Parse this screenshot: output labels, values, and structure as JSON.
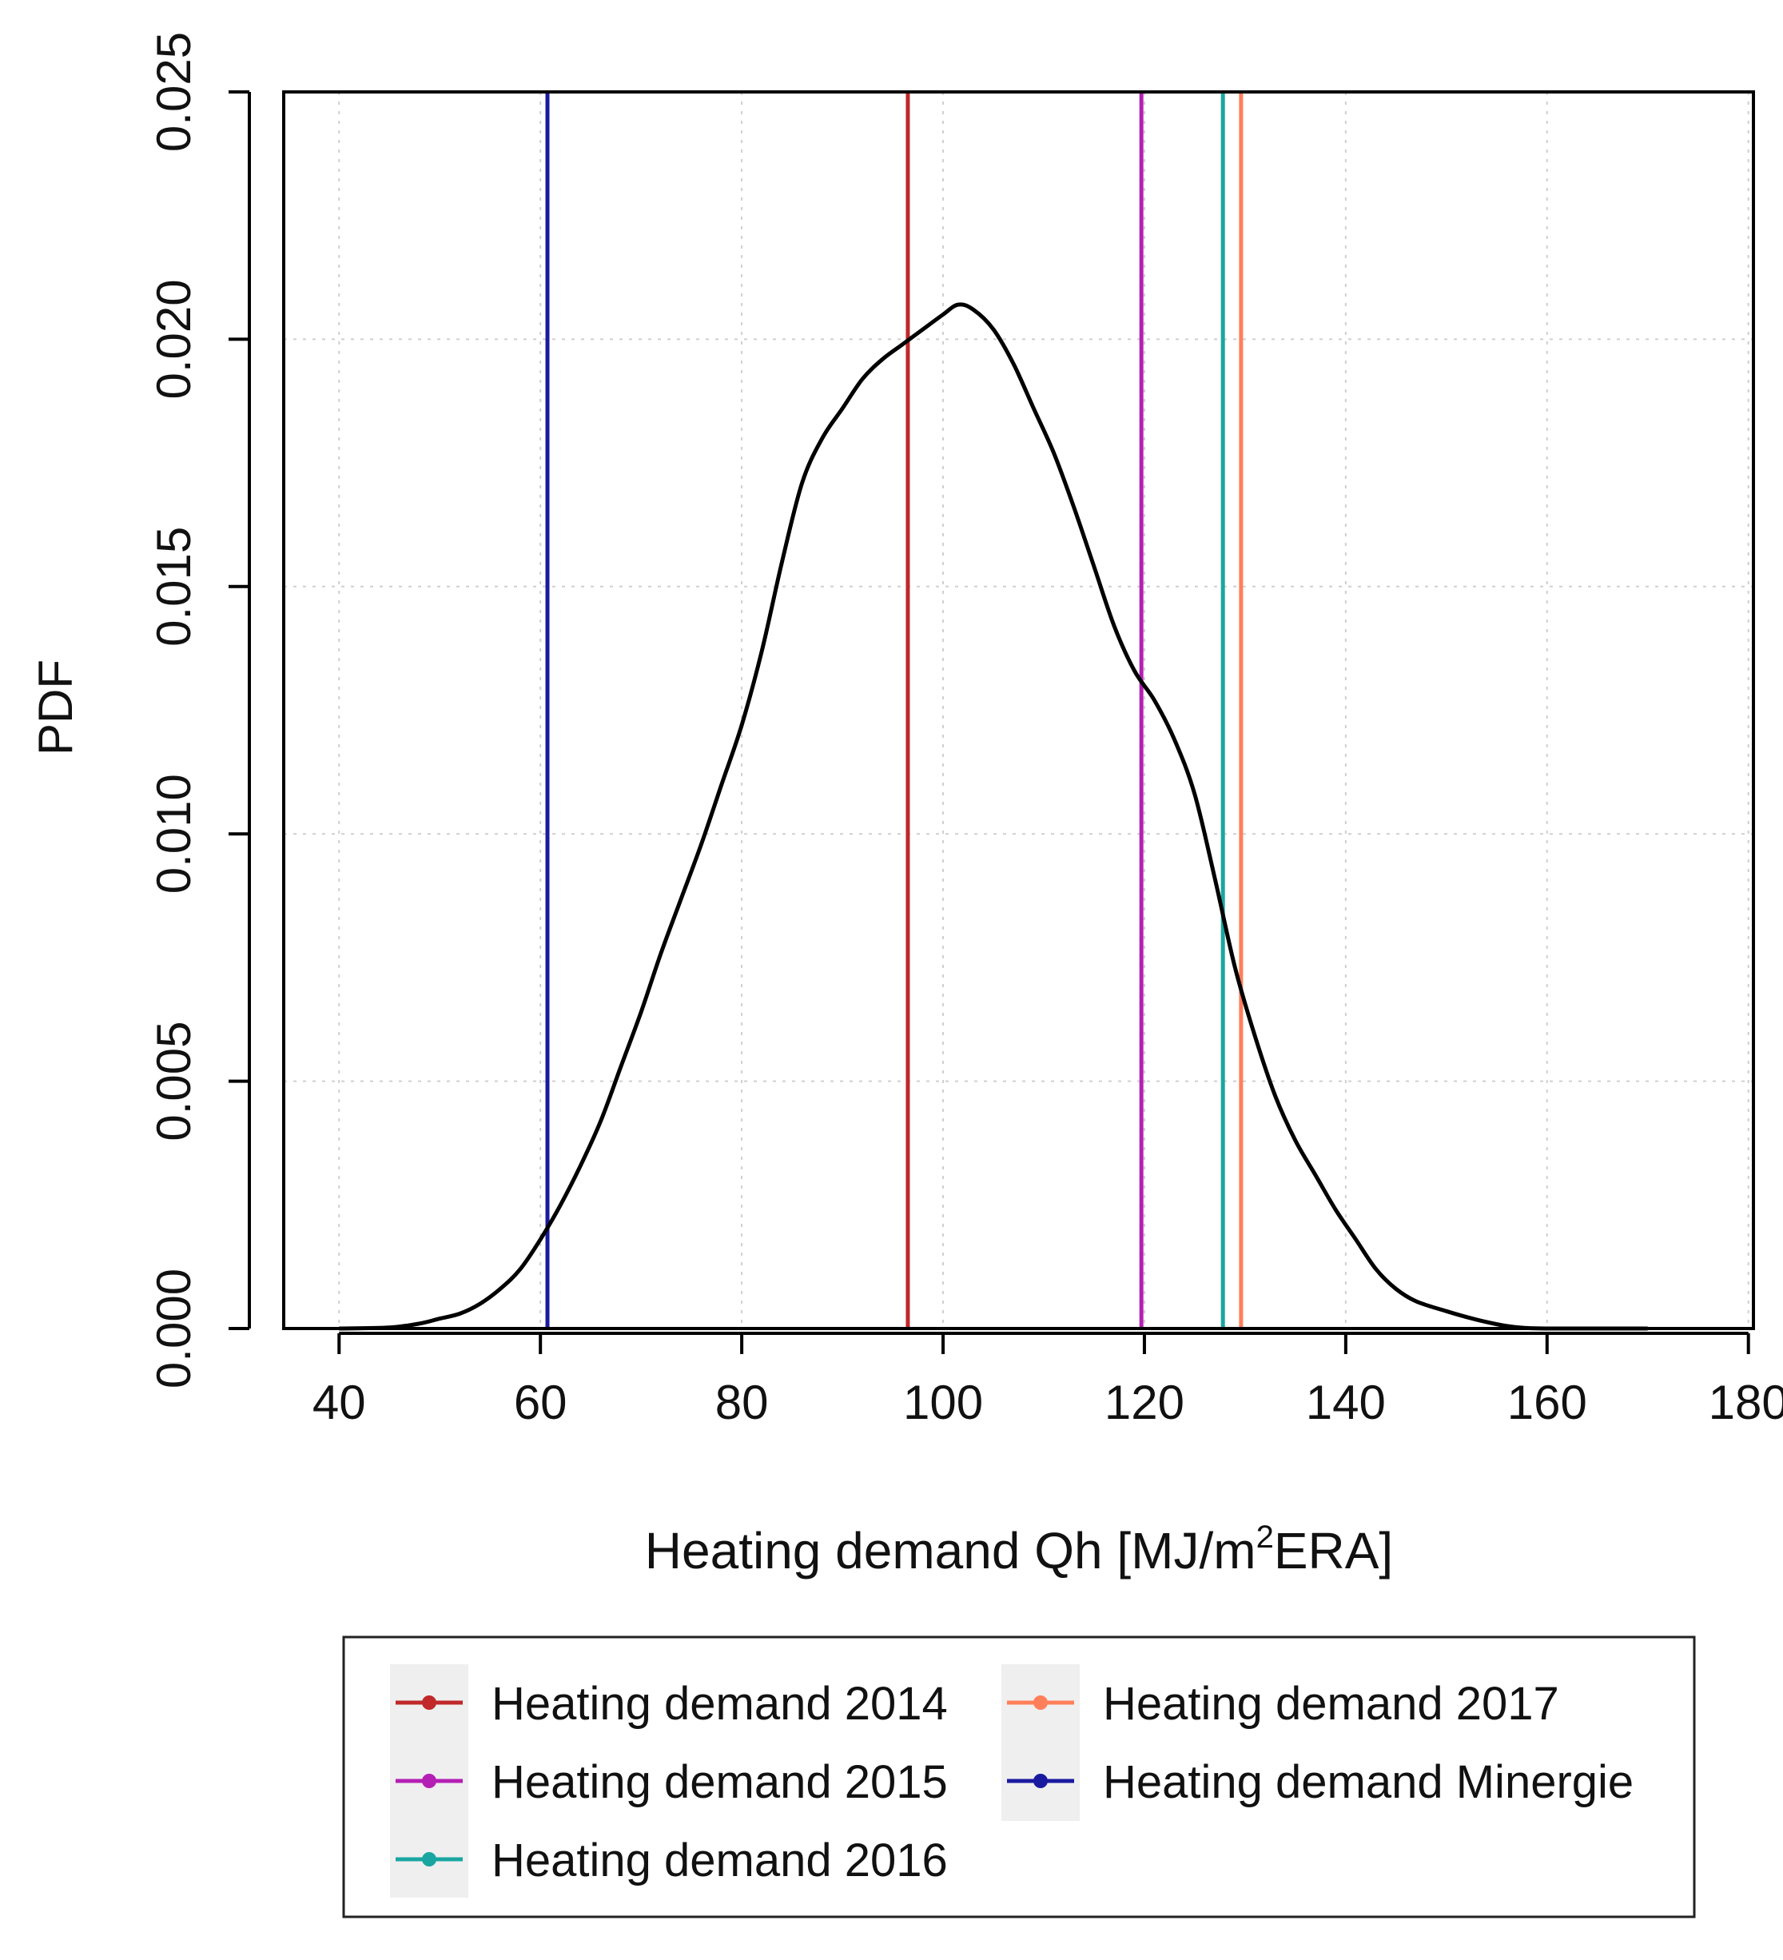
{
  "chart_data": {
    "type": "line",
    "title": "",
    "xlabel": {
      "main": "Heating demand Qh [MJ/m",
      "superscript": "2",
      "tail": "ERA]"
    },
    "ylabel": "PDF",
    "xlim": [
      34.5,
      180.5
    ],
    "ylim": [
      0.0,
      0.025
    ],
    "x_ticks": [
      40,
      60,
      80,
      100,
      120,
      140,
      160,
      180
    ],
    "x_tick_labels": [
      "40",
      "60",
      "80",
      "100",
      "120",
      "140",
      "160",
      "180"
    ],
    "y_ticks": [
      0.0,
      0.005,
      0.01,
      0.015,
      0.02,
      0.025
    ],
    "y_tick_labels": [
      "0.000",
      "0.005",
      "0.010",
      "0.015",
      "0.020",
      "0.025"
    ],
    "grid": true,
    "density_curve": {
      "color": "#000000",
      "x": [
        40,
        45,
        48,
        50,
        52,
        54,
        56,
        58,
        60,
        62,
        64,
        66,
        68,
        70,
        72,
        74,
        76,
        78,
        80,
        82,
        84,
        86,
        88,
        90,
        92,
        94,
        96,
        98,
        100,
        101.5,
        103,
        105,
        107,
        109,
        111,
        113,
        115,
        117,
        119,
        121,
        123,
        125,
        127,
        129,
        131,
        133,
        135,
        137,
        139,
        141,
        143,
        145,
        147,
        150,
        153,
        156,
        158,
        160,
        165,
        170
      ],
      "y": [
        0.0,
        2e-05,
        0.0001,
        0.0002,
        0.0003,
        0.0005,
        0.0008,
        0.0012,
        0.0018,
        0.0025,
        0.0033,
        0.0042,
        0.0053,
        0.0064,
        0.0076,
        0.0087,
        0.0098,
        0.011,
        0.0122,
        0.0137,
        0.0155,
        0.0171,
        0.018,
        0.0186,
        0.0192,
        0.0196,
        0.0199,
        0.0202,
        0.0205,
        0.0207,
        0.0206,
        0.0202,
        0.0195,
        0.0186,
        0.0177,
        0.0166,
        0.0154,
        0.0142,
        0.0133,
        0.0127,
        0.0119,
        0.0108,
        0.0091,
        0.0073,
        0.0059,
        0.0047,
        0.0038,
        0.0031,
        0.0024,
        0.0018,
        0.0012,
        0.0008,
        0.00055,
        0.00035,
        0.00018,
        5e-05,
        1e-05,
        0.0,
        0.0,
        0.0
      ]
    },
    "vlines": [
      {
        "name": "Heating demand 2014",
        "x": 96.5,
        "color": "#c0282a"
      },
      {
        "name": "Heating demand 2015",
        "x": 119.7,
        "color": "#b41fb4"
      },
      {
        "name": "Heating demand 2016",
        "x": 127.8,
        "color": "#1aa6a0"
      },
      {
        "name": "Heating demand 2017",
        "x": 129.6,
        "color": "#ff7f5a"
      },
      {
        "name": "Heating demand Minergie",
        "x": 60.7,
        "color": "#1a1aa0"
      }
    ],
    "legend": {
      "position": "bottom",
      "columns": [
        [
          "Heating demand 2014",
          "Heating demand 2015",
          "Heating demand 2016"
        ],
        [
          "Heating demand 2017",
          "Heating demand Minergie"
        ]
      ]
    }
  }
}
